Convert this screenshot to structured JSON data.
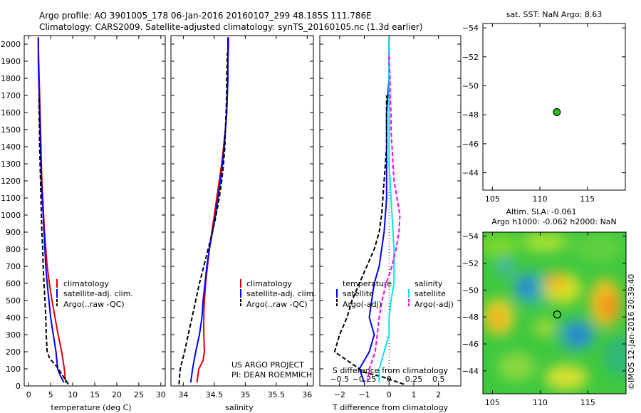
{
  "title_line1": "Argo profile: AO 3901005_178 06-Jan-2016 20160107_299 48.185S 111.786E",
  "title_line2": "Climatology: CARS2009. Satellite-adjusted climatology: synTS_20160105.nc (1.3d earlier)",
  "colors": {
    "clim": "#e00000",
    "sat": "#0000ff",
    "argo": "#000000",
    "sal_sat": "#00e8e8",
    "sal_argo": "#ff00ff"
  },
  "panel_temp": {
    "xlabel": "temperature (deg C)"
  },
  "panel_sal": {
    "xlabel": "salinity"
  },
  "panel_diff": {
    "xlabel_t": "T difference from climatology",
    "xlabel_s": "S difference from climatology"
  },
  "legend": {
    "climatology": "climatology",
    "satellite_adj": "satellite-adj. clim.",
    "argo_raw": "Argo(..raw -QC)",
    "temperature": "temperature",
    "salinity": "salinity",
    "satellite": "satellite",
    "argo_adj": "Argo(-adj)"
  },
  "project": {
    "line1": "US ARGO PROJECT",
    "line2": "PI: DEAN ROEMMICH"
  },
  "sst_map": {
    "title": "sat. SST: NaN Argo: 8.63",
    "float_lon": 111.786,
    "float_lat": -48.185
  },
  "sla_map": {
    "title1": "Altim. SLA: -0.061",
    "title2": "Argo h1000: -0.062 h2000: NaN",
    "float_lon": 111.786,
    "float_lat": -48.185
  },
  "credit": "©IMOS 12-Jan-2016 20:39:40",
  "chart_data": [
    {
      "type": "line",
      "xlabel": "temperature (deg C)",
      "xlim": [
        -1,
        31
      ],
      "ylim": [
        2050,
        0
      ],
      "xticks": [
        0,
        5,
        10,
        15,
        20,
        25,
        30
      ],
      "yticks": [
        0,
        100,
        200,
        300,
        400,
        500,
        600,
        700,
        800,
        900,
        1000,
        1100,
        1200,
        1300,
        1400,
        1500,
        1600,
        1700,
        1800,
        1900,
        2000
      ],
      "series": [
        {
          "name": "climatology",
          "color": "clim",
          "dash": false,
          "points": [
            [
              8.4,
              20
            ],
            [
              8.1,
              100
            ],
            [
              7.5,
              200
            ],
            [
              6.7,
              300
            ],
            [
              6.0,
              400
            ],
            [
              5.3,
              500
            ],
            [
              4.7,
              600
            ],
            [
              4.2,
              700
            ],
            [
              3.9,
              800
            ],
            [
              3.6,
              900
            ],
            [
              3.4,
              1000
            ],
            [
              3.2,
              1100
            ],
            [
              3.0,
              1200
            ],
            [
              2.9,
              1300
            ],
            [
              2.8,
              1400
            ],
            [
              2.7,
              1500
            ],
            [
              2.6,
              1600
            ],
            [
              2.5,
              1700
            ],
            [
              2.4,
              1800
            ],
            [
              2.3,
              1900
            ],
            [
              2.2,
              2000
            ],
            [
              2.2,
              2040
            ]
          ]
        },
        {
          "name": "satellite-adj. clim.",
          "color": "sat",
          "dash": false,
          "points": [
            [
              8.0,
              20
            ],
            [
              7.2,
              60
            ],
            [
              6.6,
              100
            ],
            [
              6.2,
              200
            ],
            [
              5.6,
              300
            ],
            [
              5.0,
              400
            ],
            [
              4.6,
              500
            ],
            [
              4.2,
              600
            ],
            [
              3.9,
              700
            ],
            [
              3.7,
              800
            ],
            [
              3.5,
              900
            ],
            [
              3.3,
              1000
            ],
            [
              3.1,
              1100
            ],
            [
              2.9,
              1200
            ],
            [
              2.8,
              1300
            ],
            [
              2.7,
              1400
            ],
            [
              2.6,
              1500
            ],
            [
              2.5,
              1600
            ],
            [
              2.4,
              1700
            ],
            [
              2.3,
              1800
            ],
            [
              2.2,
              1900
            ],
            [
              2.2,
              2000
            ],
            [
              2.2,
              2040
            ]
          ]
        },
        {
          "name": "Argo(..raw -QC)",
          "color": "argo",
          "dash": true,
          "points": [
            [
              9.0,
              10
            ],
            [
              8.0,
              50
            ],
            [
              6.5,
              110
            ],
            [
              4.8,
              160
            ],
            [
              4.2,
              200
            ],
            [
              4.0,
              300
            ],
            [
              3.9,
              400
            ],
            [
              3.7,
              500
            ],
            [
              3.5,
              600
            ],
            [
              3.3,
              700
            ],
            [
              3.2,
              800
            ],
            [
              3.0,
              900
            ],
            [
              2.9,
              1000
            ],
            [
              2.8,
              1100
            ],
            [
              2.7,
              1200
            ],
            [
              2.6,
              1300
            ],
            [
              2.5,
              1400
            ],
            [
              2.45,
              1500
            ],
            [
              2.4,
              1600
            ],
            [
              2.35,
              1700
            ]
          ]
        }
      ]
    },
    {
      "type": "line",
      "xlabel": "salinity",
      "xlim": [
        33.8,
        36.1
      ],
      "ylim": [
        2050,
        0
      ],
      "xticks": [
        34,
        34.5,
        35,
        35.5,
        36
      ],
      "series": [
        {
          "name": "climatology",
          "color": "clim",
          "dash": false,
          "points": [
            [
              34.22,
              20
            ],
            [
              34.25,
              100
            ],
            [
              34.32,
              150
            ],
            [
              34.34,
              200
            ],
            [
              34.33,
              300
            ],
            [
              34.33,
              400
            ],
            [
              34.34,
              500
            ],
            [
              34.36,
              600
            ],
            [
              34.39,
              700
            ],
            [
              34.42,
              800
            ],
            [
              34.46,
              900
            ],
            [
              34.5,
              1000
            ],
            [
              34.54,
              1100
            ],
            [
              34.58,
              1200
            ],
            [
              34.62,
              1300
            ],
            [
              34.65,
              1400
            ],
            [
              34.68,
              1500
            ],
            [
              34.7,
              1600
            ],
            [
              34.71,
              1700
            ],
            [
              34.72,
              1800
            ],
            [
              34.72,
              1900
            ],
            [
              34.73,
              2000
            ],
            [
              34.73,
              2040
            ]
          ]
        },
        {
          "name": "satellite-adj. clim.",
          "color": "sat",
          "dash": false,
          "points": [
            [
              34.12,
              20
            ],
            [
              34.15,
              100
            ],
            [
              34.2,
              200
            ],
            [
              34.26,
              300
            ],
            [
              34.3,
              400
            ],
            [
              34.32,
              500
            ],
            [
              34.35,
              600
            ],
            [
              34.38,
              700
            ],
            [
              34.42,
              800
            ],
            [
              34.47,
              900
            ],
            [
              34.52,
              1000
            ],
            [
              34.56,
              1100
            ],
            [
              34.6,
              1200
            ],
            [
              34.63,
              1300
            ],
            [
              34.66,
              1400
            ],
            [
              34.68,
              1500
            ],
            [
              34.7,
              1600
            ],
            [
              34.71,
              1700
            ],
            [
              34.72,
              1800
            ],
            [
              34.72,
              1900
            ],
            [
              34.72,
              2000
            ],
            [
              34.72,
              2040
            ]
          ]
        },
        {
          "name": "Argo(..raw -QC)",
          "color": "argo",
          "dash": true,
          "points": [
            [
              33.93,
              10
            ],
            [
              33.95,
              100
            ],
            [
              34.02,
              200
            ],
            [
              34.08,
              300
            ],
            [
              34.14,
              400
            ],
            [
              34.2,
              500
            ],
            [
              34.26,
              600
            ],
            [
              34.33,
              700
            ],
            [
              34.4,
              800
            ],
            [
              34.47,
              900
            ],
            [
              34.53,
              1000
            ],
            [
              34.58,
              1100
            ],
            [
              34.62,
              1200
            ],
            [
              34.65,
              1300
            ],
            [
              34.67,
              1400
            ],
            [
              34.68,
              1500
            ],
            [
              34.69,
              1600
            ],
            [
              34.7,
              1700
            ],
            [
              34.7,
              1800
            ],
            [
              34.71,
              1900
            ],
            [
              34.71,
              1950
            ]
          ]
        }
      ]
    },
    {
      "type": "line",
      "xlabel": "T difference from climatology",
      "xlabel2": "S difference from climatology",
      "xlim": [
        -2.8,
        2.9
      ],
      "ylim": [
        2050,
        0
      ],
      "xticks": [
        -2,
        -1,
        0,
        1,
        2
      ],
      "xticks_s": [
        -0.5,
        -0.25,
        0,
        0.25,
        0.5
      ],
      "series": [
        {
          "name": "temperature satellite",
          "color": "sat",
          "dash": false,
          "points": [
            [
              -1.0,
              20
            ],
            [
              -1.2,
              100
            ],
            [
              -0.8,
              200
            ],
            [
              -0.6,
              300
            ],
            [
              -0.8,
              400
            ],
            [
              -0.7,
              500
            ],
            [
              -0.6,
              600
            ],
            [
              -0.4,
              700
            ],
            [
              -0.3,
              800
            ],
            [
              -0.2,
              900
            ],
            [
              -0.15,
              1000
            ],
            [
              -0.1,
              1100
            ],
            [
              -0.1,
              1200
            ],
            [
              -0.1,
              1300
            ],
            [
              -0.1,
              1400
            ],
            [
              -0.1,
              1500
            ],
            [
              -0.1,
              1600
            ],
            [
              -0.05,
              1700
            ],
            [
              0,
              1800
            ],
            [
              0,
              1900
            ],
            [
              0,
              2000
            ],
            [
              0,
              2040
            ]
          ]
        },
        {
          "name": "temperature Argo(-adj)",
          "color": "argo",
          "dash": true,
          "points": [
            [
              0.6,
              10
            ],
            [
              -0.2,
              50
            ],
            [
              -1.0,
              80
            ],
            [
              -2.2,
              200
            ],
            [
              -2.0,
              300
            ],
            [
              -1.7,
              400
            ],
            [
              -1.5,
              500
            ],
            [
              -1.2,
              600
            ],
            [
              -0.9,
              700
            ],
            [
              -0.6,
              800
            ],
            [
              -0.4,
              900
            ],
            [
              -0.3,
              1000
            ],
            [
              -0.25,
              1100
            ],
            [
              -0.2,
              1200
            ],
            [
              -0.15,
              1300
            ],
            [
              -0.1,
              1400
            ],
            [
              -0.1,
              1500
            ],
            [
              -0.1,
              1600
            ],
            [
              -0.1,
              1700
            ]
          ]
        },
        {
          "name": "salinity satellite",
          "color": "sal_sat",
          "dash": false,
          "points": [
            [
              -0.1,
              20
            ],
            [
              -0.1,
              100
            ],
            [
              -0.05,
              200
            ],
            [
              0,
              300
            ],
            [
              0,
              400
            ],
            [
              0.02,
              500
            ],
            [
              0.05,
              600
            ],
            [
              0.05,
              700
            ],
            [
              0.05,
              800
            ],
            [
              0.04,
              900
            ],
            [
              0.03,
              1000
            ],
            [
              0.02,
              1100
            ],
            [
              0.01,
              1200
            ],
            [
              0,
              1300
            ],
            [
              0,
              1400
            ],
            [
              0,
              1500
            ],
            [
              0,
              1600
            ],
            [
              0,
              1700
            ],
            [
              0,
              1800
            ],
            [
              0,
              1900
            ],
            [
              0,
              2000
            ],
            [
              0,
              2040
            ]
          ]
        },
        {
          "name": "salinity Argo(-adj)",
          "color": "sal_argo",
          "dash": true,
          "points": [
            [
              -0.22,
              20
            ],
            [
              -0.2,
              100
            ],
            [
              -0.14,
              200
            ],
            [
              -0.12,
              300
            ],
            [
              -0.1,
              400
            ],
            [
              -0.07,
              500
            ],
            [
              -0.03,
              600
            ],
            [
              0.03,
              700
            ],
            [
              0.07,
              800
            ],
            [
              0.1,
              900
            ],
            [
              0.11,
              1000
            ],
            [
              0.08,
              1100
            ],
            [
              0.05,
              1200
            ],
            [
              0.04,
              1300
            ],
            [
              0.03,
              1400
            ],
            [
              0.02,
              1500
            ],
            [
              0.02,
              1600
            ],
            [
              0.01,
              1700
            ],
            [
              0.01,
              1800
            ],
            [
              0,
              1900
            ],
            [
              0,
              1950
            ]
          ]
        }
      ]
    },
    {
      "type": "scatter",
      "title": "sat. SST: NaN Argo: 8.63",
      "xlim": [
        104,
        119
      ],
      "ylim": [
        -54.3,
        -42.8
      ],
      "xticks": [
        105,
        110,
        115
      ],
      "yticks": [
        -44,
        -46,
        -48,
        -50,
        -52,
        -54
      ],
      "points": [
        [
          111.786,
          -48.185
        ]
      ]
    },
    {
      "type": "heatmap",
      "title": "Altim. SLA: -0.061",
      "subtitle": "Argo h1000: -0.062 h2000: NaN",
      "xlim": [
        104,
        119
      ],
      "ylim": [
        -54.3,
        -42.3
      ],
      "xticks": [
        105,
        110,
        115
      ],
      "yticks": [
        -44,
        -46,
        -48,
        -50,
        -52,
        -54
      ],
      "points": [
        [
          111.786,
          -48.185
        ]
      ]
    }
  ]
}
